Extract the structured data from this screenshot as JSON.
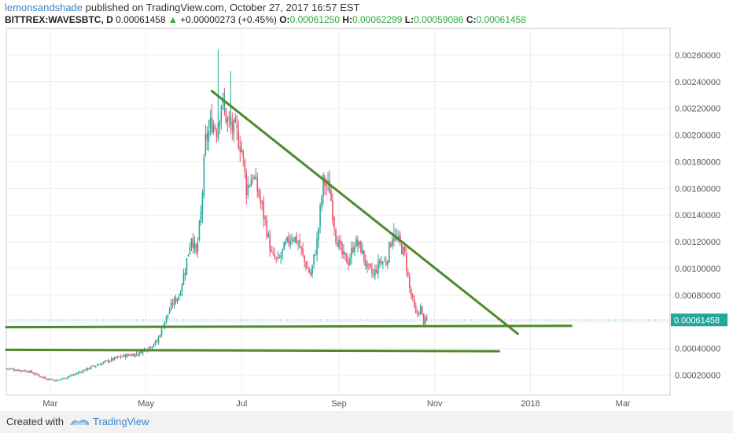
{
  "header": {
    "author": "lemonsandshade",
    "published_text": "published on TradingView.com, October 27, 2017 16:57 EST",
    "symbol": "BITTREX:WAVESBTC, D",
    "last": "0.00061458",
    "change": "+0.00000273 (+0.45%)",
    "o_label": "O:",
    "o_value": "0.00061250",
    "h_label": "H:",
    "h_value": "0.00062299",
    "l_label": "L:",
    "l_value": "0.00059086",
    "c_label": "C:",
    "c_value": "0.00061458"
  },
  "footer": {
    "created_with": "Created with",
    "brand": "TradingView"
  },
  "colors": {
    "up": "#26a69a",
    "down": "#e8536a",
    "trendline": "#4e8a2c",
    "price_tag": "#26a69a",
    "grid": "#eeeeee"
  },
  "chart_data": {
    "type": "candlestick",
    "ylim": [
      5e-05,
      0.0028
    ],
    "y_ticks": [
      "0.00020000",
      "0.00040000",
      "0.00060000",
      "0.00080000",
      "0.00100000",
      "0.00120000",
      "0.00140000",
      "0.00160000",
      "0.00180000",
      "0.00200000",
      "0.00220000",
      "0.00240000",
      "0.00260000"
    ],
    "x_ticks": [
      "Mar",
      "May",
      "Jul",
      "Sep",
      "Nov",
      "2018",
      "Mar"
    ],
    "x_tick_dates": [
      "2017-03-01",
      "2017-05-01",
      "2017-07-01",
      "2017-09-01",
      "2017-11-01",
      "2018-01-01",
      "2018-03-01"
    ],
    "x_range": [
      "2017-02-01",
      "2018-03-31"
    ],
    "last_price_label": "0.00061458",
    "last_price": 0.00061458,
    "close_path": [
      [
        "2017-02-01",
        0.00025
      ],
      [
        "2017-02-15",
        0.00023
      ],
      [
        "2017-02-25",
        0.00018
      ],
      [
        "2017-03-05",
        0.00016
      ],
      [
        "2017-03-15",
        0.0002
      ],
      [
        "2017-03-25",
        0.00025
      ],
      [
        "2017-04-05",
        0.0003
      ],
      [
        "2017-04-15",
        0.00034
      ],
      [
        "2017-04-25",
        0.00036
      ],
      [
        "2017-05-01",
        0.0004
      ],
      [
        "2017-05-08",
        0.00045
      ],
      [
        "2017-05-12",
        0.00058
      ],
      [
        "2017-05-18",
        0.00074
      ],
      [
        "2017-05-22",
        0.0008
      ],
      [
        "2017-05-26",
        0.001
      ],
      [
        "2017-05-30",
        0.00125
      ],
      [
        "2017-06-02",
        0.0011
      ],
      [
        "2017-06-05",
        0.0014
      ],
      [
        "2017-06-08",
        0.00195
      ],
      [
        "2017-06-12",
        0.0021
      ],
      [
        "2017-06-15",
        0.00205
      ],
      [
        "2017-06-18",
        0.00225
      ],
      [
        "2017-06-22",
        0.0021
      ],
      [
        "2017-06-25",
        0.00205
      ],
      [
        "2017-06-28",
        0.002
      ],
      [
        "2017-07-01",
        0.0019
      ],
      [
        "2017-07-04",
        0.0016
      ],
      [
        "2017-07-08",
        0.0017
      ],
      [
        "2017-07-12",
        0.00155
      ],
      [
        "2017-07-16",
        0.00135
      ],
      [
        "2017-07-20",
        0.0011
      ],
      [
        "2017-07-24",
        0.00105
      ],
      [
        "2017-07-28",
        0.00115
      ],
      [
        "2017-08-02",
        0.00125
      ],
      [
        "2017-08-06",
        0.0012
      ],
      [
        "2017-08-10",
        0.00105
      ],
      [
        "2017-08-14",
        0.00095
      ],
      [
        "2017-08-18",
        0.0012
      ],
      [
        "2017-08-22",
        0.00165
      ],
      [
        "2017-08-26",
        0.0016
      ],
      [
        "2017-08-30",
        0.00125
      ],
      [
        "2017-09-03",
        0.0011
      ],
      [
        "2017-09-07",
        0.00105
      ],
      [
        "2017-09-11",
        0.0012
      ],
      [
        "2017-09-15",
        0.00115
      ],
      [
        "2017-09-19",
        0.001
      ],
      [
        "2017-09-23",
        0.00095
      ],
      [
        "2017-09-27",
        0.00105
      ],
      [
        "2017-10-01",
        0.00105
      ],
      [
        "2017-10-05",
        0.00125
      ],
      [
        "2017-10-09",
        0.0012
      ],
      [
        "2017-10-13",
        0.0011
      ],
      [
        "2017-10-16",
        0.00085
      ],
      [
        "2017-10-20",
        0.00065
      ],
      [
        "2017-10-23",
        0.0007
      ],
      [
        "2017-10-25",
        0.0006
      ],
      [
        "2017-10-27",
        0.00061458
      ]
    ],
    "spikes": [
      [
        "2017-06-16",
        0.00264
      ],
      [
        "2017-06-24",
        0.00248
      ],
      [
        "2017-06-20",
        0.00232
      ],
      [
        "2017-08-22",
        0.00172
      ],
      [
        "2017-10-06",
        0.00134
      ]
    ],
    "trend_lines": [
      {
        "from": [
          "2017-06-12",
          0.00233
        ],
        "to": [
          "2017-12-24",
          0.00051
        ]
      },
      {
        "from": [
          "2017-02-01",
          0.00056
        ],
        "to": [
          "2018-01-27",
          0.00057
        ]
      },
      {
        "from": [
          "2017-02-01",
          0.00039
        ],
        "to": [
          "2017-12-12",
          0.00038
        ]
      }
    ]
  }
}
